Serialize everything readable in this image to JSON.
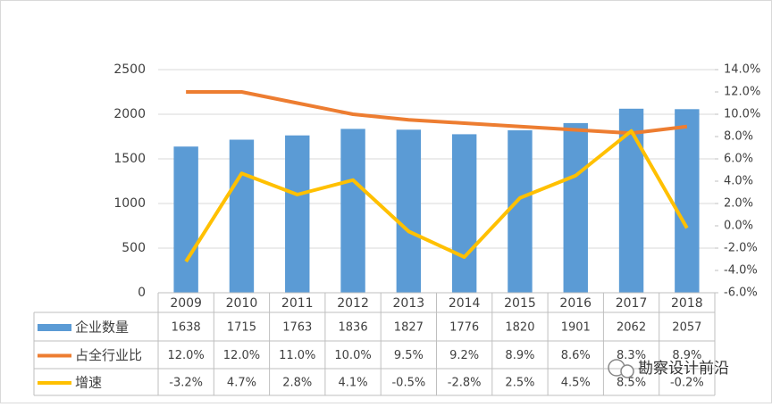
{
  "chart_data": {
    "type": "bar-line-table",
    "categories": [
      "2009",
      "2010",
      "2011",
      "2012",
      "2013",
      "2014",
      "2015",
      "2016",
      "2017",
      "2018"
    ],
    "series": [
      {
        "name": "企业数量",
        "color": "#5b9bd5",
        "type": "bar",
        "values": [
          1638,
          1715,
          1763,
          1836,
          1827,
          1776,
          1820,
          1901,
          2062,
          2057
        ]
      },
      {
        "name": "占全行业比",
        "color": "#ed7d31",
        "type": "line",
        "axis": "y2",
        "values": [
          12.0,
          12.0,
          11.0,
          10.0,
          9.5,
          9.2,
          8.9,
          8.6,
          8.3,
          8.9
        ],
        "value_labels": [
          "12.0%",
          "12.0%",
          "11.0%",
          "10.0%",
          "9.5%",
          "9.2%",
          "8.9%",
          "8.6%",
          "8.3%",
          "8.9%"
        ]
      },
      {
        "name": "增速",
        "color": "#ffc000",
        "type": "line",
        "axis": "y2",
        "values": [
          -3.2,
          4.7,
          2.8,
          4.1,
          -0.5,
          -2.8,
          2.5,
          4.5,
          8.5,
          -0.2
        ],
        "value_labels": [
          "-3.2%",
          "4.7%",
          "2.8%",
          "4.1%",
          "-0.5%",
          "-2.8%",
          "2.5%",
          "4.5%",
          "8.5%",
          "-0.2%"
        ]
      }
    ],
    "ylim": [
      0,
      2500
    ],
    "yticks": [
      0,
      500,
      1000,
      1500,
      2000,
      2500
    ],
    "y2lim": [
      -6,
      14
    ],
    "y2ticks": [
      {
        "value": -6,
        "label": "-6.0%"
      },
      {
        "value": -4,
        "label": "-4.0%"
      },
      {
        "value": -2,
        "label": "-2.0%"
      },
      {
        "value": 0,
        "label": "0.0%"
      },
      {
        "value": 2,
        "label": "2.0%"
      },
      {
        "value": 4,
        "label": "4.0%"
      },
      {
        "value": 6,
        "label": "6.0%"
      },
      {
        "value": 8,
        "label": "8.0%"
      },
      {
        "value": 10,
        "label": "10.0%"
      },
      {
        "value": 12,
        "label": "12.0%"
      },
      {
        "value": 14,
        "label": "14.0%"
      }
    ],
    "watermark": "勘察设计前沿"
  }
}
